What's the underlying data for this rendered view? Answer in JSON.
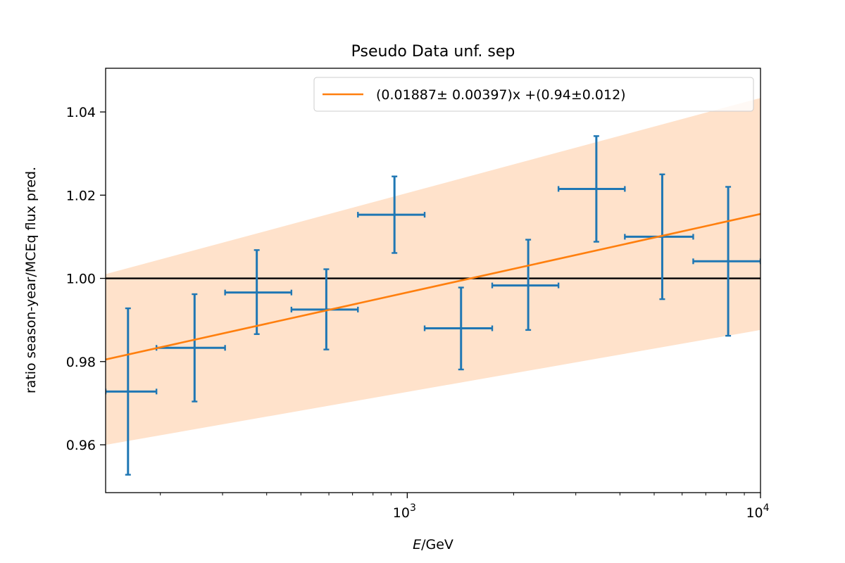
{
  "chart_data": {
    "type": "scatter",
    "title": "Pseudo Data unf. sep",
    "xlabel_italic": "E",
    "xlabel_rest": "/GeV",
    "ylabel": "ratio season-year/MCEq flux pred.",
    "x_scale": "log",
    "xlim": [
      140,
      10000
    ],
    "ylim": [
      0.9485,
      1.0505
    ],
    "x_major_ticks": [
      {
        "value": 1000,
        "base": "10",
        "exp": "3"
      },
      {
        "value": 10000,
        "base": "10",
        "exp": "4"
      }
    ],
    "x_minor_ticks": [
      200,
      300,
      400,
      500,
      600,
      700,
      800,
      900,
      2000,
      3000,
      4000,
      5000,
      6000,
      7000,
      8000,
      9000
    ],
    "y_ticks": [
      0.96,
      0.98,
      1.0,
      1.02,
      1.04
    ],
    "y_tick_labels": [
      "0.96",
      "0.98",
      "1.00",
      "1.02",
      "1.04"
    ],
    "reference_line": 1.0,
    "legend": {
      "placement": "upper-right",
      "label": "(0.01887± 0.00397)x +(0.94±0.012)"
    },
    "fit": {
      "slope": 0.01887,
      "slope_err": 0.00397,
      "intercept": 0.94,
      "intercept_err": 0.012
    },
    "colors": {
      "points": "#1f77b4",
      "fit": "#ff7f0e",
      "band": "#ffe2cb",
      "reference": "#000000"
    },
    "points": [
      {
        "x": 162,
        "xlow": 140,
        "xhigh": 195,
        "y": 0.9728,
        "ylow": 0.9528,
        "yhigh": 0.9928
      },
      {
        "x": 250,
        "xlow": 195,
        "xhigh": 305,
        "y": 0.9833,
        "ylow": 0.9704,
        "yhigh": 0.9962
      },
      {
        "x": 375,
        "xlow": 305,
        "xhigh": 470,
        "y": 0.9966,
        "ylow": 0.9866,
        "yhigh": 1.0068
      },
      {
        "x": 590,
        "xlow": 470,
        "xhigh": 725,
        "y": 0.9925,
        "ylow": 0.9829,
        "yhigh": 1.0022
      },
      {
        "x": 920,
        "xlow": 725,
        "xhigh": 1120,
        "y": 1.0153,
        "ylow": 1.0061,
        "yhigh": 1.0245
      },
      {
        "x": 1420,
        "xlow": 1120,
        "xhigh": 1740,
        "y": 0.988,
        "ylow": 0.9781,
        "yhigh": 0.9978
      },
      {
        "x": 2200,
        "xlow": 1740,
        "xhigh": 2680,
        "y": 0.9983,
        "ylow": 0.9876,
        "yhigh": 1.0093
      },
      {
        "x": 3430,
        "xlow": 2680,
        "xhigh": 4130,
        "y": 1.0215,
        "ylow": 1.0088,
        "yhigh": 1.0342
      },
      {
        "x": 5270,
        "xlow": 4130,
        "xhigh": 6450,
        "y": 1.01,
        "ylow": 0.995,
        "yhigh": 1.025
      },
      {
        "x": 8100,
        "xlow": 6450,
        "xhigh": 10000,
        "y": 1.0041,
        "ylow": 0.9862,
        "yhigh": 1.022
      }
    ]
  }
}
